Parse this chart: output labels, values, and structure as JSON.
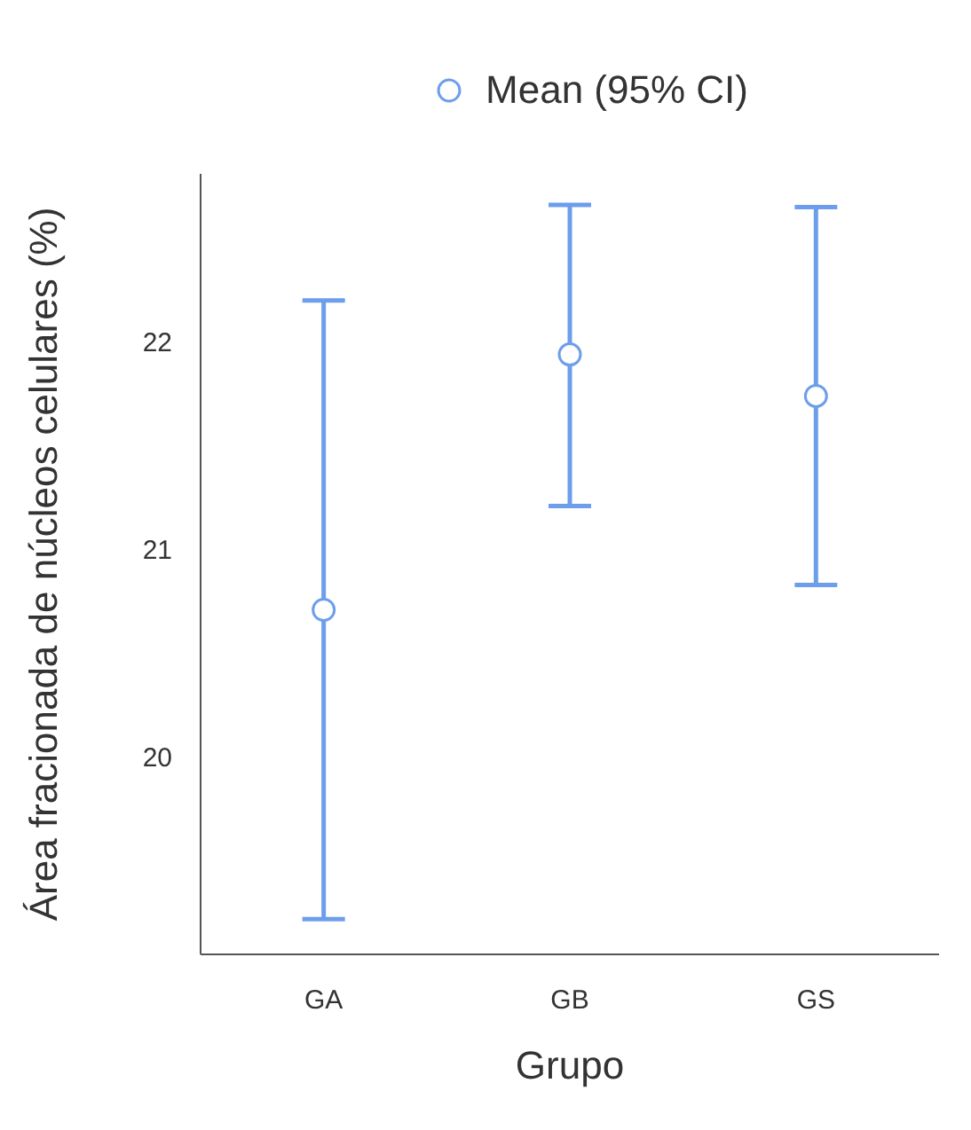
{
  "chart_data": {
    "type": "scatter",
    "xlabel": "Grupo",
    "ylabel": "Área fracionada de núcleos celulares (%)",
    "categories": [
      "GA",
      "GB",
      "GS"
    ],
    "series": [
      {
        "name": "Mean (95% CI)",
        "color": "#6d9eeb",
        "values": [
          20.71,
          21.94,
          21.74
        ],
        "errors": [
          [
            19.22,
            22.2
          ],
          [
            21.21,
            22.66
          ],
          [
            20.83,
            22.65
          ]
        ]
      }
    ],
    "ylim": [
      19.05,
      22.81
    ],
    "yticks": [
      20,
      21,
      22
    ],
    "grid": false,
    "legend": "top",
    "marker": "circle"
  }
}
